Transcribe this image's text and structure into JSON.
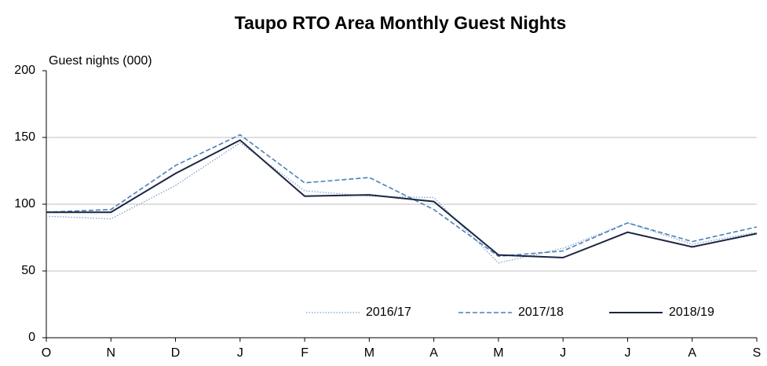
{
  "chart_data": {
    "type": "line",
    "title": "Taupo RTO Area Monthly Guest Nights",
    "y_label": "Guest nights (000)",
    "categories": [
      "O",
      "N",
      "D",
      "J",
      "F",
      "M",
      "A",
      "M",
      "J",
      "J",
      "A",
      "S"
    ],
    "series": [
      {
        "name": "2016/17",
        "color": "#7ba3cd",
        "dash": "dotted",
        "values": [
          91,
          89,
          114,
          146,
          110,
          106,
          105,
          56,
          67,
          86,
          70,
          79
        ]
      },
      {
        "name": "2017/18",
        "color": "#4a7fb8",
        "dash": "dashed",
        "values": [
          94,
          96,
          129,
          152,
          116,
          120,
          96,
          61,
          65,
          86,
          72,
          83
        ]
      },
      {
        "name": "2018/19",
        "color": "#1c2541",
        "dash": "solid",
        "values": [
          94,
          94,
          123,
          148,
          106,
          107,
          102,
          62,
          60,
          79,
          68,
          78
        ]
      }
    ],
    "ylim": [
      0,
      200
    ],
    "yticks": [
      0,
      50,
      100,
      150,
      200
    ],
    "grid": true,
    "legend": "bottom-right"
  }
}
